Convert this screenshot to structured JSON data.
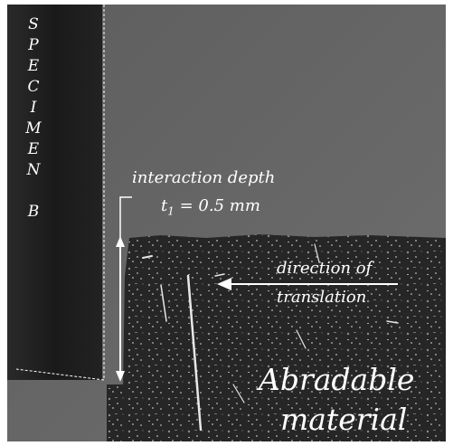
{
  "figure": {
    "specimen_letters": [
      "S",
      "P",
      "E",
      "C",
      "I",
      "M",
      "E",
      "N",
      "",
      "B"
    ],
    "interaction_label": "interaction depth",
    "t_symbol": "t",
    "t_subscript": "1",
    "t_value": " = 0.5 mm",
    "arrow_label_line1": "direction of",
    "arrow_label_line2": "translation",
    "material_line1": "Abradable",
    "material_line2": "material"
  },
  "colors": {
    "background_top": "#6a6a6a",
    "specimen": "#1e1e1e",
    "material": "#2a2a2a",
    "annotation": "#ffffff"
  }
}
